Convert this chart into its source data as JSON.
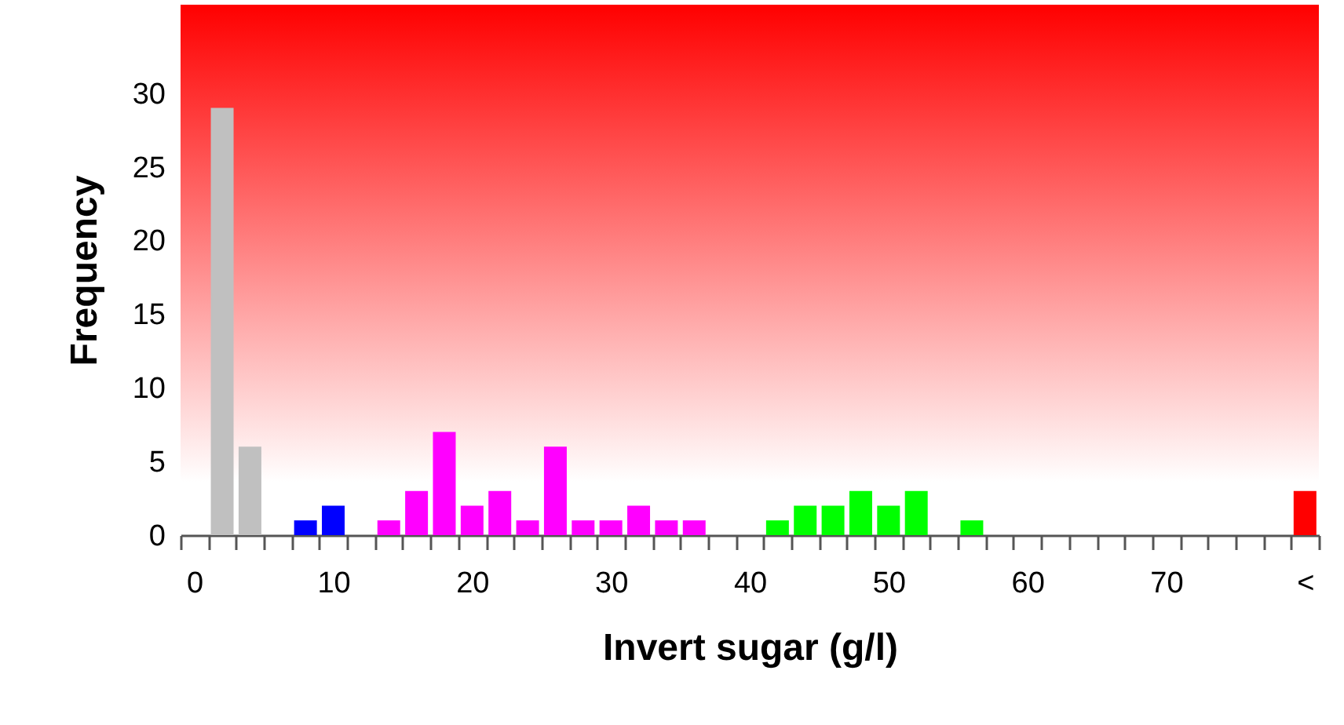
{
  "chart_data": {
    "type": "bar",
    "xlabel": "Invert sugar (g/l)",
    "ylabel": "Frequency",
    "categories": [
      "0",
      null,
      null,
      null,
      null,
      "10",
      null,
      null,
      null,
      null,
      "20",
      null,
      null,
      null,
      null,
      "30",
      null,
      null,
      null,
      null,
      "40",
      null,
      null,
      null,
      null,
      "50",
      null,
      null,
      null,
      null,
      "60",
      null,
      null,
      null,
      null,
      "70",
      null,
      null,
      null,
      null,
      "<"
    ],
    "values": [
      0,
      29,
      6,
      0,
      1,
      2,
      0,
      1,
      3,
      7,
      2,
      3,
      1,
      6,
      1,
      1,
      2,
      1,
      1,
      0,
      0,
      1,
      2,
      2,
      3,
      2,
      3,
      0,
      1,
      0,
      0,
      0,
      0,
      0,
      0,
      0,
      0,
      0,
      0,
      0,
      3
    ],
    "colors": [
      "#c0c0c0",
      "#c0c0c0",
      "#c0c0c0",
      "#0000ff",
      "#0000ff",
      "#0000ff",
      "#ff00ff",
      "#ff00ff",
      "#ff00ff",
      "#ff00ff",
      "#ff00ff",
      "#ff00ff",
      "#ff00ff",
      "#ff00ff",
      "#ff00ff",
      "#ff00ff",
      "#ff00ff",
      "#ff00ff",
      "#ff00ff",
      "#00ff00",
      "#00ff00",
      "#00ff00",
      "#00ff00",
      "#00ff00",
      "#00ff00",
      "#00ff00",
      "#00ff00",
      "#00ff00",
      "#00ff00",
      "#00ff00",
      "#00ff00",
      "#00ff00",
      "#00ff00",
      "#00ff00",
      "#00ff00",
      "#00ff00",
      "#00ff00",
      "#00ff00",
      "#00ff00",
      "#00ff00",
      "#ff0000"
    ],
    "ylim": [
      0,
      36
    ],
    "yticks": [
      0,
      5,
      10,
      15,
      20,
      25,
      30
    ],
    "grid": false
  }
}
